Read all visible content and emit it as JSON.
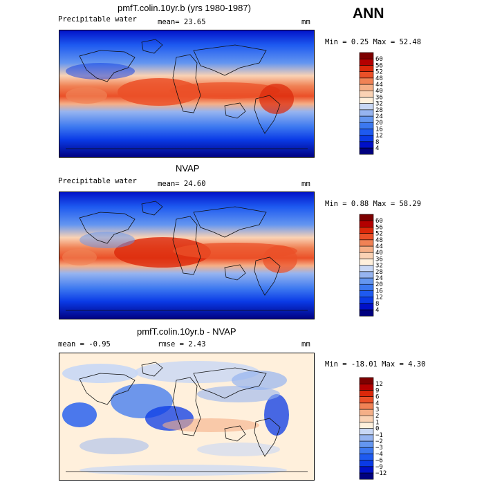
{
  "season": "ANN",
  "panels": [
    {
      "title": "pmfT.colin.10yr.b (yrs 1980-1987)",
      "left_label": "Precipitable water",
      "center_label": "mean=  23.65",
      "right_label": "mm",
      "stats": "Min =   0.25 Max =  52.48"
    },
    {
      "title": "NVAP",
      "left_label": "Precipitable water",
      "center_label": "mean=  24.60",
      "right_label": "mm",
      "stats": "Min =   0.88 Max =  58.29"
    },
    {
      "title": "pmfT.colin.10yr.b - NVAP",
      "left_label": "mean =  -0.95",
      "center_label": "rmse =   2.43",
      "right_label": "mm",
      "stats": "Min = -18.01 Max =   4.30"
    }
  ],
  "chart_data": [
    {
      "type": "heatmap",
      "title": "pmfT.colin.10yr.b (yrs 1980-1987)",
      "variable": "Precipitable water",
      "units": "mm",
      "mean": 23.65,
      "min": 0.25,
      "max": 52.48,
      "colorbar_levels": [
        4,
        8,
        12,
        16,
        20,
        24,
        28,
        32,
        36,
        40,
        44,
        48,
        52,
        56,
        60
      ],
      "colorbar_colors": [
        "#00007f",
        "#0010c8",
        "#0a3ae6",
        "#1e5af0",
        "#3c78f0",
        "#6496f0",
        "#96b4f0",
        "#c8d7f5",
        "#fff0dc",
        "#fad2b4",
        "#f5af87",
        "#f08255",
        "#eb5028",
        "#dc280a",
        "#b40000",
        "#7d0000"
      ]
    },
    {
      "type": "heatmap",
      "title": "NVAP",
      "variable": "Precipitable water",
      "units": "mm",
      "mean": 24.6,
      "min": 0.88,
      "max": 58.29,
      "colorbar_levels": [
        4,
        8,
        12,
        16,
        20,
        24,
        28,
        32,
        36,
        40,
        44,
        48,
        52,
        56,
        60
      ],
      "colorbar_colors": [
        "#00007f",
        "#0010c8",
        "#0a3ae6",
        "#1e5af0",
        "#3c78f0",
        "#6496f0",
        "#96b4f0",
        "#c8d7f5",
        "#fff0dc",
        "#fad2b4",
        "#f5af87",
        "#f08255",
        "#eb5028",
        "#dc280a",
        "#b40000",
        "#7d0000"
      ]
    },
    {
      "type": "heatmap",
      "title": "pmfT.colin.10yr.b - NVAP",
      "units": "mm",
      "mean": -0.95,
      "rmse": 2.43,
      "min": -18.01,
      "max": 4.3,
      "colorbar_levels": [
        -12,
        -9,
        -6,
        -4,
        -3,
        -2,
        -1,
        0,
        1,
        2,
        3,
        4,
        6,
        9,
        12
      ],
      "colorbar_level_labels": [
        "−12",
        "−9",
        "−6",
        "−4",
        "−3",
        "−2",
        "−1",
        "0",
        "1",
        "2",
        "3",
        "4",
        "6",
        "9",
        "12"
      ],
      "colorbar_colors": [
        "#00007f",
        "#0010c8",
        "#0a3ae6",
        "#1e5af0",
        "#3c78f0",
        "#6496f0",
        "#96b4f0",
        "#c8d7f5",
        "#fff0dc",
        "#fad2b4",
        "#f5af87",
        "#f08255",
        "#eb5028",
        "#dc280a",
        "#b40000",
        "#7d0000"
      ]
    }
  ]
}
